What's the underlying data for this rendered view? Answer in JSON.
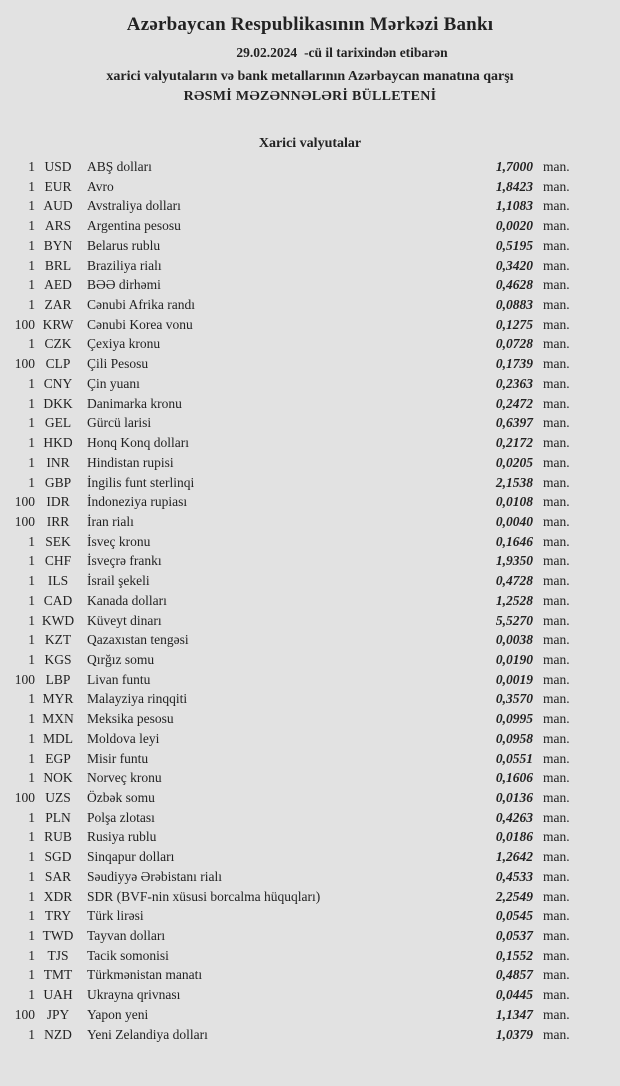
{
  "page": {
    "background_color": "#e2e2e2",
    "text_color": "#222222"
  },
  "header": {
    "bank_name": "Azərbaycan Respublikasının Mərkəzi Bankı",
    "date_value": "29.02.2024",
    "date_suffix": "-cü il tarixindən etibarən",
    "subtitle_line1": "xarici valyutaların və bank metallarının Azərbaycan manatına qarşı",
    "subtitle_line2": "RƏSMİ MƏZƏNNƏLƏRİ BÜLLETENİ"
  },
  "section": {
    "title": "Xarici valyutalar"
  },
  "rates": {
    "unit_label": "man.",
    "rows": [
      {
        "qty": "1",
        "code": "USD",
        "name": "ABŞ dolları",
        "rate": "1,7000"
      },
      {
        "qty": "1",
        "code": "EUR",
        "name": "Avro",
        "rate": "1,8423"
      },
      {
        "qty": "1",
        "code": "AUD",
        "name": "Avstraliya dolları",
        "rate": "1,1083"
      },
      {
        "qty": "1",
        "code": "ARS",
        "name": "Argentina pesosu",
        "rate": "0,0020"
      },
      {
        "qty": "1",
        "code": "BYN",
        "name": "Belarus rublu",
        "rate": "0,5195"
      },
      {
        "qty": "1",
        "code": "BRL",
        "name": "Braziliya rialı",
        "rate": "0,3420"
      },
      {
        "qty": "1",
        "code": "AED",
        "name": "BƏƏ dirhəmi",
        "rate": "0,4628"
      },
      {
        "qty": "1",
        "code": "ZAR",
        "name": "Cənubi Afrika randı",
        "rate": "0,0883"
      },
      {
        "qty": "100",
        "code": "KRW",
        "name": "Cənubi Korea vonu",
        "rate": "0,1275"
      },
      {
        "qty": "1",
        "code": "CZK",
        "name": "Çexiya kronu",
        "rate": "0,0728"
      },
      {
        "qty": "100",
        "code": "CLP",
        "name": "Çili Pesosu",
        "rate": "0,1739"
      },
      {
        "qty": "1",
        "code": "CNY",
        "name": "Çin yuanı",
        "rate": "0,2363"
      },
      {
        "qty": "1",
        "code": "DKK",
        "name": "Danimarka kronu",
        "rate": "0,2472"
      },
      {
        "qty": "1",
        "code": "GEL",
        "name": "Gürcü larisi",
        "rate": "0,6397"
      },
      {
        "qty": "1",
        "code": "HKD",
        "name": "Honq Konq dolları",
        "rate": "0,2172"
      },
      {
        "qty": "1",
        "code": "INR",
        "name": "Hindistan rupisi",
        "rate": "0,0205"
      },
      {
        "qty": "1",
        "code": "GBP",
        "name": "İngilis funt sterlinqi",
        "rate": "2,1538"
      },
      {
        "qty": "100",
        "code": "IDR",
        "name": "İndoneziya rupiası",
        "rate": "0,0108"
      },
      {
        "qty": "100",
        "code": "IRR",
        "name": "İran rialı",
        "rate": "0,0040"
      },
      {
        "qty": "1",
        "code": "SEK",
        "name": "İsveç kronu",
        "rate": "0,1646"
      },
      {
        "qty": "1",
        "code": "CHF",
        "name": "İsveçrə frankı",
        "rate": "1,9350"
      },
      {
        "qty": "1",
        "code": "ILS",
        "name": "İsrail şekeli",
        "rate": "0,4728"
      },
      {
        "qty": "1",
        "code": "CAD",
        "name": "Kanada dolları",
        "rate": "1,2528"
      },
      {
        "qty": "1",
        "code": "KWD",
        "name": "Küveyt dinarı",
        "rate": "5,5270"
      },
      {
        "qty": "1",
        "code": "KZT",
        "name": "Qazaxıstan tengəsi",
        "rate": "0,0038"
      },
      {
        "qty": "1",
        "code": "KGS",
        "name": "Qırğız somu",
        "rate": "0,0190"
      },
      {
        "qty": "100",
        "code": "LBP",
        "name": "Livan funtu",
        "rate": "0,0019"
      },
      {
        "qty": "1",
        "code": "MYR",
        "name": "Malayziya rinqqiti",
        "rate": "0,3570"
      },
      {
        "qty": "1",
        "code": "MXN",
        "name": "Meksika pesosu",
        "rate": "0,0995"
      },
      {
        "qty": "1",
        "code": "MDL",
        "name": "Moldova leyi",
        "rate": "0,0958"
      },
      {
        "qty": "1",
        "code": "EGP",
        "name": "Misir funtu",
        "rate": "0,0551"
      },
      {
        "qty": "1",
        "code": "NOK",
        "name": "Norveç kronu",
        "rate": "0,1606"
      },
      {
        "qty": "100",
        "code": "UZS",
        "name": "Özbək somu",
        "rate": "0,0136"
      },
      {
        "qty": "1",
        "code": "PLN",
        "name": "Polşa zlotası",
        "rate": "0,4263"
      },
      {
        "qty": "1",
        "code": "RUB",
        "name": "Rusiya rublu",
        "rate": "0,0186"
      },
      {
        "qty": "1",
        "code": "SGD",
        "name": "Sinqapur dolları",
        "rate": "1,2642"
      },
      {
        "qty": "1",
        "code": "SAR",
        "name": "Səudiyyə Ərəbistanı rialı",
        "rate": "0,4533"
      },
      {
        "qty": "1",
        "code": "XDR",
        "name": "SDR (BVF-nin xüsusi borcalma hüquqları)",
        "rate": "2,2549"
      },
      {
        "qty": "1",
        "code": "TRY",
        "name": "Türk lirəsi",
        "rate": "0,0545"
      },
      {
        "qty": "1",
        "code": "TWD",
        "name": "Tayvan dolları",
        "rate": "0,0537"
      },
      {
        "qty": "1",
        "code": "TJS",
        "name": "Tacik somonisi",
        "rate": "0,1552"
      },
      {
        "qty": "1",
        "code": "TMT",
        "name": "Türkmənistan manatı",
        "rate": "0,4857"
      },
      {
        "qty": "1",
        "code": "UAH",
        "name": "Ukrayna qrivnası",
        "rate": "0,0445"
      },
      {
        "qty": "100",
        "code": "JPY",
        "name": "Yapon yeni",
        "rate": "1,1347"
      },
      {
        "qty": "1",
        "code": "NZD",
        "name": "Yeni Zelandiya dolları",
        "rate": "1,0379"
      }
    ]
  }
}
